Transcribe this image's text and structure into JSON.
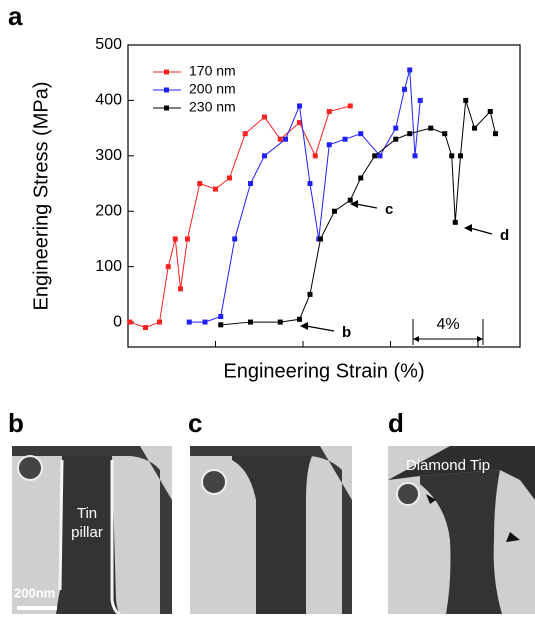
{
  "chart_data": {
    "type": "line",
    "x_label": "Engineering Strain (%)",
    "y_label": "Engineering Stress (MPa)",
    "xlim": [
      0,
      22.4
    ],
    "xticks": [
      0,
      5,
      10,
      15,
      20
    ],
    "ylim": [
      -45,
      500
    ],
    "yticks": [
      0,
      100,
      200,
      300,
      400,
      500
    ],
    "legend": "top-left",
    "series": [
      {
        "name": "170 nm",
        "color": "#ff2020",
        "x": [
          0.1,
          1.0,
          1.8,
          2.3,
          2.7,
          3.0,
          3.4,
          4.1,
          5.0,
          5.8,
          6.7,
          7.8,
          8.7,
          9.8,
          10.7,
          11.5,
          12.7
        ],
        "values": [
          0,
          -10,
          0,
          100,
          150,
          60,
          150,
          250,
          240,
          260,
          340,
          370,
          330,
          360,
          300,
          380,
          390
        ]
      },
      {
        "name": "200 nm",
        "color": "#2020ff",
        "x": [
          3.5,
          4.4,
          5.3,
          6.1,
          7.0,
          7.8,
          9.0,
          9.8,
          10.4,
          10.9,
          11.5,
          12.4,
          13.3,
          14.4,
          15.3,
          15.8,
          16.1,
          16.4,
          16.7
        ],
        "values": [
          0,
          0,
          10,
          150,
          250,
          300,
          330,
          390,
          250,
          150,
          320,
          330,
          340,
          300,
          350,
          420,
          455,
          300,
          400
        ]
      },
      {
        "name": "230 nm",
        "color": "#000000",
        "x": [
          5.3,
          7.0,
          8.7,
          9.8,
          10.4,
          11.0,
          11.8,
          12.7,
          13.3,
          14.1,
          15.3,
          16.1,
          17.3,
          18.1,
          18.5,
          18.7,
          19.0,
          19.3,
          19.8,
          20.7,
          21.0
        ],
        "values": [
          -5,
          0,
          0,
          5,
          50,
          150,
          200,
          220,
          260,
          300,
          330,
          340,
          350,
          340,
          300,
          180,
          300,
          400,
          350,
          380,
          340
        ]
      }
    ],
    "annotations": [
      "b",
      "c",
      "d"
    ],
    "scale_bar": {
      "label": "4%",
      "length": 4
    }
  },
  "figure": {
    "panel_labels": [
      "a",
      "b",
      "c",
      "d"
    ],
    "tin_pillar": [
      "Tin",
      "pillar"
    ],
    "diamond_tip": "Diamond Tip",
    "scale": "200nm"
  }
}
